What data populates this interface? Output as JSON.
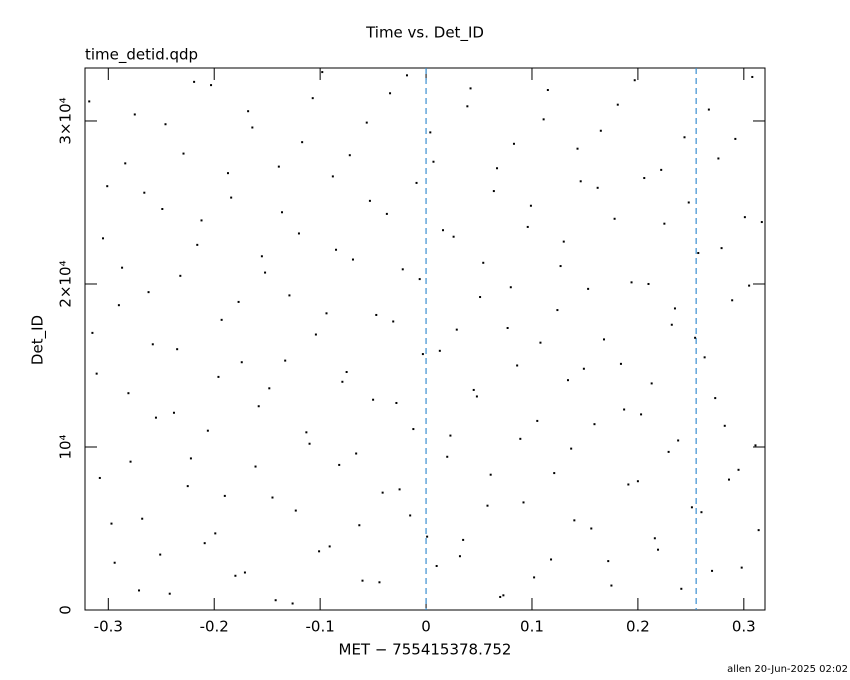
{
  "chart_data": {
    "type": "scatter",
    "title": "Time vs. Det_ID",
    "subtitle": "time_detid.qdp",
    "x_label": "MET − 755415378.752",
    "y_label": "Det_ID",
    "footer": "allen 20-Jun-2025 02:02",
    "color": "#000000",
    "vline_color": "#3a8fd0",
    "vlines": [
      0,
      0.255
    ],
    "xlim": [
      -0.322,
      0.32
    ],
    "ylim": [
      0,
      33250
    ],
    "xticks": [
      -0.3,
      -0.2,
      -0.1,
      0,
      0.1,
      0.2,
      0.3
    ],
    "yticks": [
      0,
      {
        "value": 10000,
        "label": "10⁴"
      },
      {
        "value": 20000,
        "label": "2×10⁴"
      },
      {
        "value": 30000,
        "label": "3×10⁴"
      }
    ],
    "x": [
      -0.318,
      -0.311,
      -0.305,
      -0.297,
      -0.29,
      -0.284,
      -0.279,
      -0.271,
      -0.266,
      -0.258,
      -0.251,
      -0.246,
      -0.238,
      -0.232,
      -0.225,
      -0.219,
      -0.212,
      -0.206,
      -0.199,
      -0.193,
      -0.187,
      -0.18,
      -0.174,
      -0.168,
      -0.161,
      -0.155,
      -0.148,
      -0.142,
      -0.136,
      -0.129,
      -0.123,
      -0.117,
      -0.11,
      -0.104,
      -0.098,
      -0.091,
      -0.085,
      -0.079,
      -0.072,
      -0.066,
      -0.06,
      -0.053,
      -0.047,
      -0.041,
      -0.034,
      -0.028,
      -0.022,
      -0.015,
      -0.009,
      -0.003,
      0.004,
      0.01,
      0.016,
      0.023,
      0.029,
      0.035,
      0.042,
      0.048,
      0.054,
      0.061,
      0.067,
      0.073,
      0.08,
      0.086,
      0.092,
      0.099,
      0.105,
      0.111,
      0.118,
      0.124,
      0.13,
      0.137,
      0.143,
      0.149,
      0.156,
      0.162,
      0.168,
      0.175,
      0.181,
      0.187,
      0.194,
      0.2,
      0.206,
      0.213,
      0.219,
      0.225,
      0.232,
      0.238,
      0.244,
      0.251,
      0.257,
      0.263,
      0.27,
      0.276,
      0.282,
      0.289,
      0.295,
      0.301,
      0.308,
      0.314,
      -0.315,
      -0.308,
      -0.301,
      -0.294,
      -0.287,
      -0.281,
      -0.275,
      -0.268,
      -0.262,
      -0.255,
      -0.249,
      -0.242,
      -0.235,
      -0.229,
      -0.222,
      -0.216,
      -0.209,
      -0.203,
      -0.196,
      -0.19,
      -0.184,
      -0.177,
      -0.171,
      -0.164,
      -0.158,
      -0.152,
      -0.145,
      -0.139,
      -0.133,
      -0.126,
      -0.12,
      -0.113,
      -0.107,
      -0.101,
      -0.094,
      -0.088,
      -0.082,
      -0.075,
      -0.069,
      -0.063,
      -0.056,
      -0.05,
      -0.044,
      -0.037,
      -0.031,
      -0.025,
      -0.018,
      -0.012,
      -0.006,
      0.001,
      0.007,
      0.013,
      0.02,
      0.026,
      0.032,
      0.039,
      0.045,
      0.051,
      0.058,
      0.064,
      0.07,
      0.077,
      0.083,
      0.089,
      0.096,
      0.102,
      0.108,
      0.115,
      0.121,
      0.127,
      0.134,
      0.14,
      0.146,
      0.153,
      0.159,
      0.165,
      0.172,
      0.178,
      0.184,
      0.191,
      0.197,
      0.203,
      0.21,
      0.216,
      0.222,
      0.229,
      0.235,
      0.241,
      0.248,
      0.254,
      0.26,
      0.267,
      0.273,
      0.279,
      0.286,
      0.292,
      0.298,
      0.305,
      0.311,
      0.317
    ],
    "values": [
      31200,
      14500,
      22800,
      5300,
      18700,
      27400,
      9100,
      1200,
      25600,
      16300,
      3400,
      29800,
      12100,
      20500,
      7600,
      32400,
      23900,
      11000,
      4700,
      17800,
      26800,
      2100,
      15200,
      30600,
      8800,
      21700,
      13600,
      600,
      24400,
      19300,
      6100,
      28700,
      10200,
      16900,
      33000,
      3900,
      22100,
      14000,
      27900,
      9600,
      1800,
      25100,
      18100,
      7200,
      31700,
      12700,
      20900,
      5800,
      26200,
      15700,
      29300,
      2700,
      23300,
      10700,
      17200,
      4300,
      32000,
      13100,
      21300,
      8300,
      27100,
      900,
      19800,
      15000,
      6600,
      24800,
      11600,
      30100,
      3100,
      18400,
      22600,
      9900,
      28300,
      14800,
      5000,
      25900,
      16600,
      1500,
      31000,
      12300,
      20100,
      7900,
      26500,
      13900,
      3700,
      23700,
      17500,
      10400,
      29000,
      6300,
      21900,
      15500,
      2400,
      27700,
      11300,
      19000,
      8600,
      24100,
      32700,
      4900,
      17000,
      8100,
      26000,
      2900,
      21000,
      13300,
      30400,
      5600,
      19500,
      11800,
      24600,
      1000,
      16000,
      28000,
      9300,
      22400,
      4100,
      32200,
      14300,
      7000,
      25300,
      18900,
      2300,
      29600,
      12500,
      20700,
      6900,
      27200,
      15300,
      400,
      23100,
      10900,
      31400,
      3600,
      18200,
      26600,
      8900,
      14600,
      21500,
      5200,
      29900,
      12900,
      1700,
      24300,
      17700,
      7400,
      32800,
      11100,
      20300,
      4500,
      27500,
      15900,
      9400,
      22900,
      3300,
      30900,
      13500,
      19200,
      6400,
      25700,
      800,
      17300,
      28600,
      10500,
      23500,
      2000,
      16400,
      31900,
      8400,
      21100,
      14100,
      5500,
      26300,
      19700,
      11400,
      29400,
      3000,
      24000,
      15100,
      7700,
      32500,
      12000,
      20000,
      4400,
      27000,
      9700,
      18500,
      1300,
      25000,
      16700,
      6000,
      30700,
      13000,
      22200,
      8000,
      28900,
      2600,
      19900,
      10100,
      23800
    ]
  }
}
